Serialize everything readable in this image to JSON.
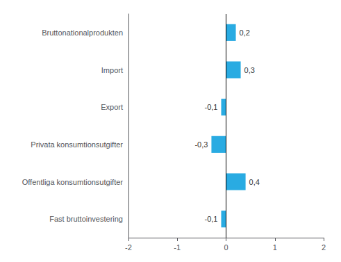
{
  "chart_data": {
    "type": "bar",
    "orientation": "horizontal",
    "categories": [
      "Bruttonationalprodukten",
      "Import",
      "Export",
      "Privata konsumtionsutgifter",
      "Offentliga konsumtionsutgifter",
      "Fast bruttoinvestering"
    ],
    "values": [
      0.2,
      0.3,
      -0.1,
      -0.3,
      0.4,
      -0.1
    ],
    "value_labels": [
      "0,2",
      "0,3",
      "-0,1",
      "-0,3",
      "0,4",
      "-0,1"
    ],
    "color": "#29ABE2",
    "xlim": [
      -2,
      2
    ],
    "xticks": [
      -2,
      -1,
      0,
      1,
      2
    ],
    "data_labels": true,
    "grid": false
  }
}
